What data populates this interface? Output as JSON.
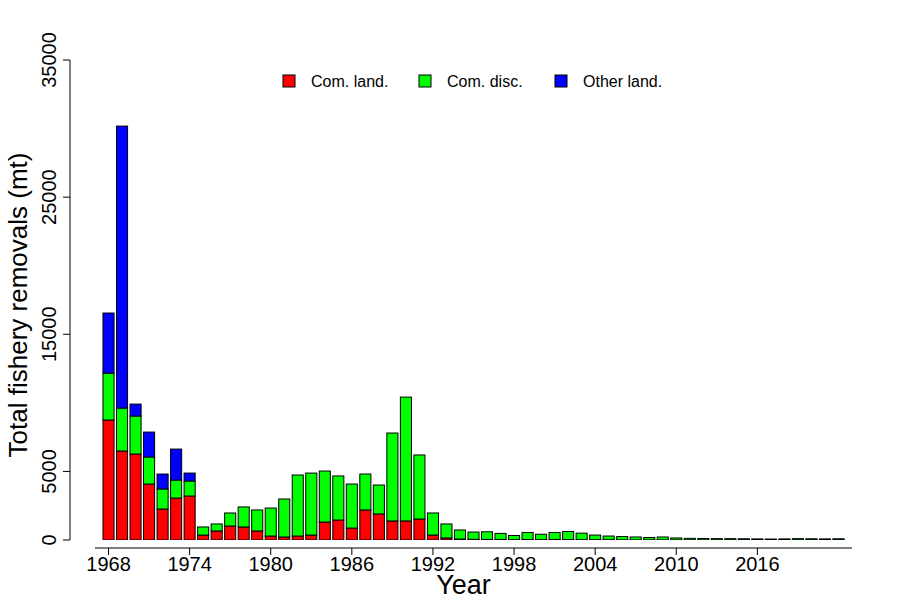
{
  "chart_data": {
    "type": "bar",
    "stacked": true,
    "x_label": "Year",
    "y_label": "Total fishery removals (mt)",
    "x": [
      1968,
      1969,
      1970,
      1971,
      1972,
      1973,
      1974,
      1975,
      1976,
      1977,
      1978,
      1979,
      1980,
      1981,
      1982,
      1983,
      1984,
      1985,
      1986,
      1987,
      1988,
      1989,
      1990,
      1991,
      1992,
      1993,
      1994,
      1995,
      1996,
      1997,
      1998,
      1999,
      2000,
      2001,
      2002,
      2003,
      2004,
      2005,
      2006,
      2007,
      2008,
      2009,
      2010,
      2011,
      2012,
      2013,
      2014,
      2015,
      2016,
      2017,
      2018,
      2019,
      2020,
      2021,
      2022
    ],
    "xlim": [
      1967,
      2023
    ],
    "xticks": [
      1968,
      1974,
      1980,
      1986,
      1992,
      1998,
      2004,
      2010,
      2016
    ],
    "ylim": [
      0,
      35000
    ],
    "yticks": [
      0,
      5000,
      15000,
      25000,
      35000
    ],
    "legend": "top",
    "series": [
      {
        "name": "Com. land.",
        "color": "#ff0000",
        "values": [
          8750,
          6490,
          6270,
          4080,
          2260,
          3060,
          3210,
          360,
          660,
          1020,
          950,
          660,
          290,
          220,
          290,
          360,
          1310,
          1460,
          870,
          2190,
          1900,
          1390,
          1390,
          1530,
          360,
          150,
          70,
          50,
          40,
          30,
          20,
          30,
          20,
          30,
          30,
          20,
          20,
          20,
          10,
          10,
          10,
          10,
          10,
          10,
          10,
          10,
          10,
          10,
          10,
          10,
          10,
          10,
          10,
          10,
          10
        ]
      },
      {
        "name": "Com. disc.",
        "color": "#00ff00",
        "values": [
          3420,
          3130,
          2770,
          1970,
          1460,
          1310,
          1090,
          590,
          510,
          950,
          1460,
          1530,
          2040,
          2770,
          4450,
          4520,
          3720,
          3210,
          3210,
          2620,
          2110,
          6410,
          9030,
          4670,
          1610,
          1020,
          660,
          530,
          560,
          450,
          310,
          520,
          400,
          520,
          590,
          480,
          340,
          270,
          240,
          210,
          170,
          210,
          140,
          110,
          100,
          90,
          90,
          80,
          70,
          60,
          70,
          90,
          80,
          70,
          80
        ]
      },
      {
        "name": "Other land.",
        "color": "#0000ff",
        "values": [
          4380,
          20560,
          870,
          1820,
          1090,
          2260,
          580,
          0,
          0,
          0,
          0,
          0,
          0,
          0,
          0,
          0,
          0,
          0,
          0,
          0,
          0,
          0,
          0,
          0,
          0,
          0,
          0,
          0,
          0,
          0,
          0,
          0,
          0,
          0,
          0,
          0,
          0,
          0,
          0,
          0,
          0,
          0,
          0,
          0,
          0,
          0,
          0,
          0,
          0,
          0,
          0,
          0,
          0,
          0,
          0
        ]
      }
    ]
  }
}
